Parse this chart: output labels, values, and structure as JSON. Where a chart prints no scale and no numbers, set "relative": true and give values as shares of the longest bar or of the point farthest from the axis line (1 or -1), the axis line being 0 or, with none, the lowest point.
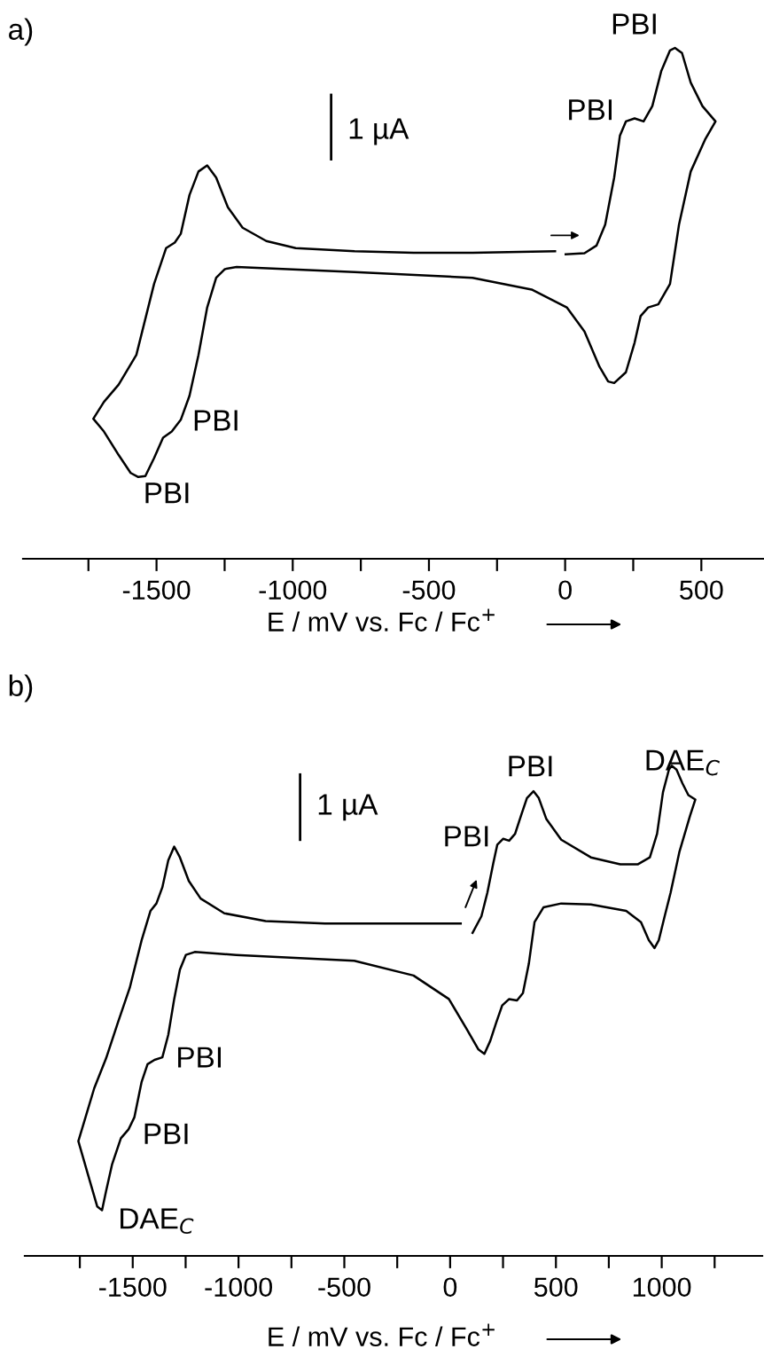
{
  "chart_data": [
    {
      "type": "line",
      "title": "a)",
      "xlabel": "E / mV vs. Fc / Fc$^{+}$",
      "relative": true,
      "xlim": [
        -1990,
        730
      ],
      "xticks": [
        -1500,
        -1000,
        -500,
        0,
        500
      ],
      "tick_labels": "x",
      "grid": false,
      "legend": false,
      "line_style": "solid",
      "marker": "none",
      "series": [
        {
          "color": "#000000",
          "x": [
            2,
            71,
            115,
            147,
            180,
            201,
            223,
            255,
            288,
            320,
            353,
            385,
            403,
            429,
            461,
            504,
            552,
            515,
            461,
            418,
            385,
            342,
            305,
            277,
            255,
            223,
            180,
            158,
            126,
            71,
            6,
            -123,
            -340,
            -773,
            -1206,
            -1249,
            -1281,
            -1314,
            -1346,
            -1379,
            -1411,
            -1444,
            -1476,
            -1509,
            -1541,
            -1567,
            -1595,
            -1639,
            -1693,
            -1732,
            -1693,
            -1639,
            -1574,
            -1509,
            -1465,
            -1433,
            -1411,
            -1379,
            -1346,
            -1314,
            -1281,
            -1238,
            -1184,
            -1097,
            -989,
            -773,
            -556,
            -340,
            -123,
            -37
          ],
          "values": [
            0.596,
            0.598,
            0.613,
            0.654,
            0.746,
            0.828,
            0.856,
            0.862,
            0.856,
            0.886,
            0.955,
            0.995,
            1,
            0.99,
            0.932,
            0.886,
            0.856,
            0.822,
            0.758,
            0.654,
            0.538,
            0.498,
            0.492,
            0.475,
            0.423,
            0.365,
            0.344,
            0.347,
            0.376,
            0.445,
            0.492,
            0.527,
            0.55,
            0.561,
            0.571,
            0.567,
            0.55,
            0.492,
            0.399,
            0.319,
            0.272,
            0.249,
            0.237,
            0.197,
            0.162,
            0.16,
            0.168,
            0.203,
            0.249,
            0.274,
            0.307,
            0.341,
            0.399,
            0.538,
            0.608,
            0.619,
            0.636,
            0.712,
            0.758,
            0.77,
            0.746,
            0.688,
            0.648,
            0.622,
            0.608,
            0.602,
            0.599,
            0.599,
            0.601,
            0.602
          ]
        }
      ],
      "annotations": [
        "PBI",
        "PBI",
        "PBI",
        "PBI",
        "1 µA"
      ]
    },
    {
      "type": "line",
      "title": "b)",
      "xlabel": "E / mV vs. Fc / Fc$^{+}$",
      "relative": true,
      "xlim": [
        -2010,
        1475
      ],
      "xticks": [
        -1500,
        -1000,
        -500,
        0,
        500,
        1000
      ],
      "tick_labels": "x",
      "grid": false,
      "legend": false,
      "line_style": "solid",
      "marker": "none",
      "series": [
        {
          "color": "#000000",
          "x": [
            106,
            148,
            176,
            204,
            223,
            251,
            279,
            307,
            335,
            363,
            394,
            419,
            455,
            525,
            665,
            804,
            888,
            944,
            978,
            1006,
            1034,
            1047,
            1070,
            1098,
            1126,
            1159,
            1134,
            1084,
            1042,
            1014,
            986,
            966,
            939,
            902,
            832,
            665,
            525,
            441,
            399,
            372,
            344,
            316,
            279,
            246,
            218,
            190,
            162,
            134,
            78,
            -6,
            -173,
            -453,
            -1011,
            -1207,
            -1249,
            -1277,
            -1304,
            -1332,
            -1360,
            -1397,
            -1430,
            -1458,
            -1492,
            -1520,
            -1556,
            -1598,
            -1626,
            -1645,
            -1668,
            -1709,
            -1757,
            -1723,
            -1682,
            -1626,
            -1570,
            -1514,
            -1458,
            -1416,
            -1388,
            -1360,
            -1332,
            -1304,
            -1277,
            -1235,
            -1179,
            -1067,
            -872,
            -592,
            -313,
            -117,
            50
          ],
          "values": [
            0.659,
            0.693,
            0.741,
            0.801,
            0.839,
            0.851,
            0.847,
            0.861,
            0.898,
            0.934,
            0.948,
            0.934,
            0.891,
            0.849,
            0.813,
            0.799,
            0.799,
            0.813,
            0.861,
            0.946,
            0.992,
            1,
            0.992,
            0.964,
            0.94,
            0.931,
            0.898,
            0.825,
            0.741,
            0.693,
            0.644,
            0.628,
            0.644,
            0.681,
            0.704,
            0.717,
            0.719,
            0.711,
            0.681,
            0.596,
            0.536,
            0.521,
            0.524,
            0.511,
            0.476,
            0.439,
            0.412,
            0.421,
            0.463,
            0.524,
            0.572,
            0.602,
            0.614,
            0.62,
            0.614,
            0.584,
            0.524,
            0.451,
            0.405,
            0.4,
            0.391,
            0.355,
            0.283,
            0.258,
            0.24,
            0.186,
            0.132,
            0.093,
            0.101,
            0.162,
            0.234,
            0.283,
            0.342,
            0.403,
            0.476,
            0.547,
            0.644,
            0.704,
            0.719,
            0.752,
            0.807,
            0.835,
            0.813,
            0.765,
            0.729,
            0.699,
            0.683,
            0.678,
            0.678,
            0.678,
            0.678
          ]
        }
      ],
      "annotations": [
        "PBI",
        "PBI",
        "DAE$_{C}$",
        "PBI",
        "PBI",
        "DAE$_{C}$",
        "1 µA"
      ]
    }
  ]
}
